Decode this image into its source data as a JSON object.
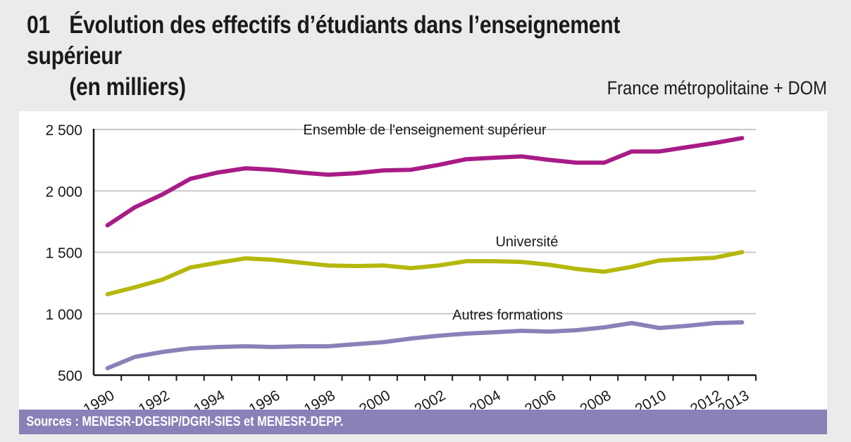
{
  "header": {
    "number": "01",
    "title_line1": "Évolution des effectifs d’étudiants dans l’enseignement supérieur",
    "title_line2": "(en milliers)",
    "scope": "France métropolitaine + DOM"
  },
  "footer": {
    "source": "Sources : MENESR-DGESIP/DGRI-SIES et MENESR-DEPP."
  },
  "colors": {
    "background": "#ebebeb",
    "panel": "#ffffff",
    "source_band": "#8882b8",
    "ensemble": "#a81c86",
    "universite": "#b5b80c",
    "autres": "#8882b8",
    "grid": "#c8c8c8",
    "axis": "#1a1a1a"
  },
  "chart_data": {
    "type": "line",
    "title": "Évolution des effectifs d’étudiants dans l’enseignement supérieur (en milliers)",
    "subtitle": "France métropolitaine + DOM",
    "xlabel": "",
    "ylabel": "",
    "ylim": [
      500,
      2500
    ],
    "y_ticks": [
      500,
      1000,
      1500,
      2000,
      2500
    ],
    "y_tick_labels": [
      "500",
      "1 000",
      "1 500",
      "2 000",
      "2 500"
    ],
    "grid": true,
    "x": [
      1990,
      1991,
      1992,
      1993,
      1994,
      1995,
      1996,
      1997,
      1998,
      1999,
      2000,
      2001,
      2002,
      2003,
      2004,
      2005,
      2006,
      2007,
      2008,
      2009,
      2010,
      2011,
      2012,
      2013
    ],
    "x_tick_labels": [
      "1990",
      "1992",
      "1994",
      "1996",
      "1998",
      "2000",
      "2002",
      "2004",
      "2006",
      "2008",
      "2010",
      "2012",
      "2013"
    ],
    "series": [
      {
        "name": "Ensemble de l'enseignement supérieur",
        "color": "#a81c86",
        "values": [
          1720,
          1868,
          1972,
          2098,
          2150,
          2184,
          2172,
          2150,
          2132,
          2144,
          2167,
          2172,
          2212,
          2258,
          2270,
          2281,
          2253,
          2230,
          2230,
          2321,
          2321,
          2356,
          2390,
          2430
        ]
      },
      {
        "name": "Université",
        "color": "#b5b80c",
        "values": [
          1159,
          1216,
          1279,
          1376,
          1416,
          1451,
          1439,
          1416,
          1393,
          1388,
          1393,
          1371,
          1393,
          1428,
          1428,
          1422,
          1399,
          1365,
          1342,
          1382,
          1434,
          1445,
          1456,
          1502
        ]
      },
      {
        "name": "Autres formations",
        "color": "#8882b8",
        "values": [
          557,
          649,
          689,
          718,
          729,
          735,
          729,
          735,
          735,
          752,
          769,
          798,
          821,
          838,
          849,
          861,
          855,
          866,
          889,
          924,
          884,
          901,
          924,
          930
        ]
      }
    ],
    "annotations": [
      {
        "text": "Ensemble de l'enseignement supérieur",
        "series": 0
      },
      {
        "text": "Université",
        "series": 1
      },
      {
        "text": "Autres formations",
        "series": 2
      }
    ],
    "legend": "none (inline labels)"
  }
}
